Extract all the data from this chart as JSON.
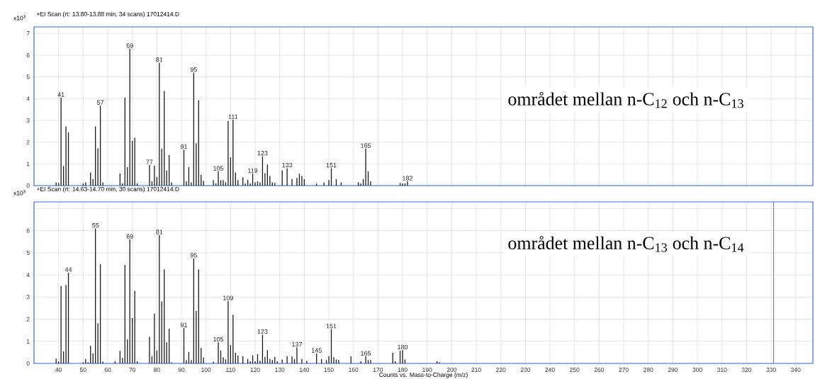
{
  "chart_data": [
    {
      "type": "bar",
      "title": "+EI Scan (rt: 13.80-13.88 min, 34 scans) 17012414.D",
      "ylabel": "x10$^{3}$",
      "x": [
        39,
        40,
        41,
        42,
        43,
        44,
        50,
        51,
        53,
        54,
        55,
        56,
        57,
        58,
        65,
        66,
        67,
        68,
        69,
        70,
        71,
        72,
        77,
        78,
        79,
        80,
        81,
        82,
        83,
        84,
        85,
        86,
        91,
        92,
        93,
        94,
        95,
        96,
        97,
        98,
        99,
        103,
        104,
        105,
        106,
        107,
        108,
        109,
        110,
        111,
        112,
        113,
        115,
        116,
        117,
        118,
        119,
        120,
        121,
        122,
        123,
        124,
        125,
        126,
        127,
        128,
        131,
        133,
        135,
        137,
        138,
        139,
        140,
        145,
        148,
        150,
        151,
        153,
        155,
        162,
        163,
        164,
        165,
        166,
        167,
        179,
        180,
        181,
        182
      ],
      "values": [
        0.15,
        0.12,
        4.05,
        0.9,
        2.72,
        2.45,
        0.1,
        0.15,
        0.6,
        0.3,
        2.72,
        1.72,
        3.68,
        0.15,
        0.55,
        0.1,
        4.05,
        0.85,
        6.3,
        2.05,
        2.2,
        0.1,
        0.95,
        0.2,
        0.92,
        0.4,
        5.65,
        1.7,
        4.35,
        0.7,
        1.4,
        0.15,
        1.65,
        0.2,
        0.85,
        0.15,
        5.2,
        1.95,
        3.93,
        0.5,
        0.22,
        0.25,
        0.1,
        0.65,
        0.25,
        0.25,
        0.15,
        2.97,
        1.3,
        3.03,
        0.6,
        0.25,
        0.38,
        0.1,
        0.27,
        0.1,
        0.55,
        0.15,
        0.2,
        0.15,
        1.35,
        0.57,
        0.97,
        0.45,
        0.15,
        0.12,
        0.7,
        0.8,
        0.3,
        0.35,
        0.55,
        0.45,
        0.3,
        0.1,
        0.15,
        0.25,
        0.8,
        0.3,
        0.15,
        0.15,
        0.1,
        0.3,
        1.7,
        0.65,
        0.2,
        0.12,
        0.1,
        0.1,
        0.2
      ],
      "color": "#1a1a1a",
      "xlim": [
        30,
        347
      ],
      "xticks": [
        40,
        50,
        60,
        70,
        80,
        90,
        100,
        110,
        120,
        130,
        140,
        150,
        160,
        170,
        180,
        190,
        200,
        210,
        220,
        230,
        240,
        250,
        260,
        270,
        280,
        290,
        300,
        310,
        320,
        330,
        340
      ],
      "ylim": [
        0,
        7.3
      ],
      "yticks": [
        0,
        1,
        2,
        3,
        4,
        5,
        6,
        7
      ],
      "grid": true,
      "tick_labels": "y",
      "annotations": [
        {
          "text": "41",
          "x": 41,
          "y": 4.05
        },
        {
          "text": "57",
          "x": 57,
          "y": 3.68
        },
        {
          "text": "69",
          "x": 69,
          "y": 6.3
        },
        {
          "text": "77",
          "x": 77,
          "y": 0.95
        },
        {
          "text": "81",
          "x": 81,
          "y": 5.65
        },
        {
          "text": "91",
          "x": 91,
          "y": 1.65
        },
        {
          "text": "95",
          "x": 95,
          "y": 5.2
        },
        {
          "text": "105",
          "x": 105,
          "y": 0.65
        },
        {
          "text": "111",
          "x": 111,
          "y": 3.03
        },
        {
          "text": "119",
          "x": 119,
          "y": 0.55
        },
        {
          "text": "123",
          "x": 123,
          "y": 1.35
        },
        {
          "text": "133",
          "x": 133,
          "y": 0.8
        },
        {
          "text": "151",
          "x": 151,
          "y": 0.8
        },
        {
          "text": "165",
          "x": 165,
          "y": 1.7
        },
        {
          "text": "182",
          "x": 182,
          "y": 0.2
        },
        "området mellan n-C$_{12}$ och n-C$_{13}$"
      ]
    },
    {
      "type": "bar",
      "title": "+EI Scan (rt: 14.63-14.70 min, 30 scans) 17012414.D",
      "ylabel": "x10$^{3}$",
      "xlabel": "Counts vs. Mass-to-Charge (m/z)",
      "x": [
        39,
        40,
        41,
        42,
        43,
        44,
        50,
        51,
        52,
        53,
        54,
        55,
        56,
        57,
        58,
        63,
        65,
        66,
        67,
        68,
        69,
        70,
        71,
        72,
        77,
        78,
        79,
        80,
        81,
        82,
        83,
        84,
        85,
        86,
        91,
        92,
        93,
        94,
        95,
        96,
        97,
        98,
        99,
        103,
        104,
        105,
        106,
        107,
        108,
        109,
        110,
        111,
        112,
        113,
        115,
        117,
        118,
        119,
        120,
        121,
        122,
        123,
        124,
        125,
        126,
        127,
        128,
        129,
        131,
        133,
        135,
        136,
        137,
        139,
        141,
        145,
        147,
        149,
        150,
        151,
        152,
        153,
        154,
        159,
        163,
        165,
        166,
        167,
        176,
        177,
        179,
        180,
        181,
        194,
        195
      ],
      "values": [
        0.22,
        0.1,
        3.5,
        0.55,
        3.55,
        4.1,
        0.05,
        0.2,
        0.05,
        0.8,
        0.45,
        6.1,
        1.82,
        4.48,
        0.08,
        0.1,
        0.57,
        0.25,
        4.45,
        1.08,
        5.6,
        2.05,
        3.28,
        0.1,
        1.2,
        0.32,
        2.25,
        0.58,
        5.8,
        2.8,
        4.25,
        0.95,
        1.57,
        0.05,
        1.6,
        0.15,
        0.52,
        0.15,
        4.75,
        2.38,
        4.25,
        0.7,
        0.27,
        0.08,
        null,
        0.95,
        0.58,
        0.28,
        0.18,
        2.82,
        0.83,
        2.2,
        0.48,
        0.35,
        0.32,
        0.2,
        0.1,
        0.37,
        0.1,
        0.42,
        0.12,
        1.3,
        0.3,
        0.6,
        0.2,
        0.15,
        0.3,
        0.1,
        0.18,
        0.32,
        0.32,
        0.2,
        0.72,
        0.2,
        0.12,
        0.45,
        0.2,
        0.15,
        0.32,
        1.55,
        0.28,
        0.18,
        0.15,
        0.32,
        0.1,
        0.32,
        0.15,
        0.15,
        0.48,
        0.1,
        0.57,
        0.6,
        0.18,
        0.1,
        0.05
      ],
      "color": "#1a1a1a",
      "xlim": [
        30,
        347
      ],
      "xticks": [
        40,
        50,
        60,
        70,
        80,
        90,
        100,
        110,
        120,
        130,
        140,
        150,
        160,
        170,
        180,
        190,
        200,
        210,
        220,
        230,
        240,
        250,
        260,
        270,
        280,
        290,
        300,
        310,
        320,
        330,
        340
      ],
      "ylim": [
        0,
        7.3
      ],
      "yticks": [
        0,
        1,
        2,
        3,
        4,
        5,
        6,
        {
          "value": 7,
          "label": null
        }
      ],
      "grid": true,
      "ref_lines": [
        {
          "axis": "x",
          "value": 331,
          "color": "#555555"
        }
      ],
      "annotations": [
        {
          "text": "44",
          "x": 44,
          "y": 4.1
        },
        {
          "text": "55",
          "x": 55,
          "y": 6.1
        },
        {
          "text": "69",
          "x": 69,
          "y": 5.6
        },
        {
          "text": "81",
          "x": 81,
          "y": 5.8
        },
        {
          "text": "91",
          "x": 91,
          "y": 1.6
        },
        {
          "text": "95",
          "x": 95,
          "y": 4.75
        },
        {
          "text": "105",
          "x": 105,
          "y": 0.95
        },
        {
          "text": "109",
          "x": 109,
          "y": 2.82
        },
        {
          "text": "123",
          "x": 123,
          "y": 1.3
        },
        {
          "text": "137",
          "x": 137,
          "y": 0.72
        },
        {
          "text": "145",
          "x": 145,
          "y": 0.45
        },
        {
          "text": "151",
          "x": 151,
          "y": 1.55
        },
        {
          "text": "165",
          "x": 165,
          "y": 0.32
        },
        {
          "text": "180",
          "x": 180,
          "y": 0.6
        },
        "området mellan n-C$_{13}$ och n-C$_{14}$"
      ]
    }
  ]
}
